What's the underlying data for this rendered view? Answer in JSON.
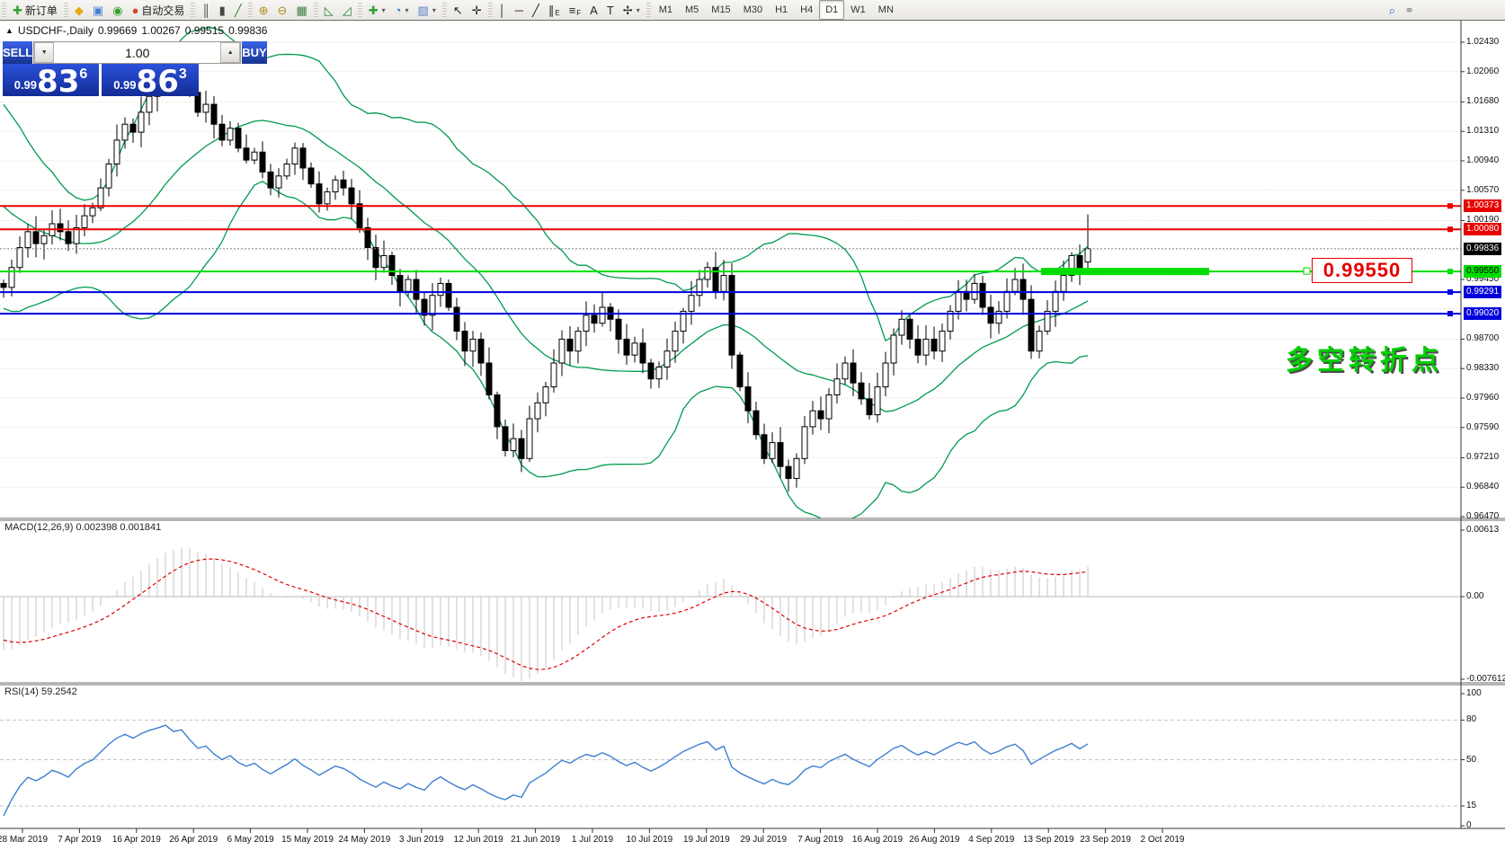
{
  "toolbar": {
    "groups": [
      {
        "items": [
          {
            "name": "new-order-button",
            "glyph": "✚",
            "glyph_color": "#2fa12f",
            "label": "新订单"
          }
        ]
      },
      {
        "items": [
          {
            "name": "charts-button",
            "glyph": "◆",
            "glyph_color": "#e3a812"
          },
          {
            "name": "terminal-button",
            "glyph": "▣",
            "glyph_color": "#4b7fd6"
          },
          {
            "name": "signals-button",
            "glyph": "◉",
            "glyph_color": "#35a035"
          },
          {
            "name": "autotrading-button",
            "glyph": "●",
            "glyph_color": "#cf4a26",
            "label": "自动交易"
          }
        ]
      },
      {
        "items": [
          {
            "name": "bar-chart-button",
            "glyph": "║",
            "glyph_color": "#444444"
          },
          {
            "name": "candlestick-chart-button",
            "glyph": "▮",
            "glyph_color": "#444444"
          },
          {
            "name": "line-chart-button",
            "glyph": "╱",
            "glyph_color": "#2f7f2f"
          }
        ]
      },
      {
        "items": [
          {
            "name": "zoom-in-button",
            "glyph": "⊕",
            "glyph_color": "#b08f1d"
          },
          {
            "name": "zoom-out-button",
            "glyph": "⊖",
            "glyph_color": "#b08f1d"
          },
          {
            "name": "tile-windows-button",
            "glyph": "▦",
            "glyph_color": "#3f7f3f"
          }
        ]
      },
      {
        "items": [
          {
            "name": "indicator-window-button",
            "glyph": "◺",
            "glyph_color": "#2f7f2f"
          },
          {
            "name": "objects-window-button",
            "glyph": "◿",
            "glyph_color": "#2f7f2f"
          }
        ]
      },
      {
        "items": [
          {
            "name": "add-indicator-dropdown",
            "glyph": "✚",
            "glyph_color": "#2fa12f",
            "dropdown": true
          },
          {
            "name": "periods-dropdown",
            "glyph": "◔",
            "glyph_color": "#2f6fc0",
            "dropdown": true
          },
          {
            "name": "templates-dropdown",
            "glyph": "▨",
            "glyph_color": "#5f83c9",
            "dropdown": true
          }
        ]
      },
      {
        "items": [
          {
            "name": "cursor-button",
            "glyph": "↖",
            "glyph_color": "#222222"
          },
          {
            "name": "crosshair-button",
            "glyph": "✛",
            "glyph_color": "#222222"
          }
        ]
      },
      {
        "items": [
          {
            "name": "vertical-line-button",
            "glyph": "│",
            "glyph_color": "#222222"
          },
          {
            "name": "horizontal-line-button",
            "glyph": "─",
            "glyph_color": "#222222"
          },
          {
            "name": "trendline-button",
            "glyph": "╱",
            "glyph_color": "#222222"
          },
          {
            "name": "equidistant-channel-button",
            "glyph": "∥",
            "sub": "E",
            "glyph_color": "#222222"
          },
          {
            "name": "fibonacci-button",
            "glyph": "≡",
            "sub": "F",
            "glyph_color": "#222222"
          },
          {
            "name": "text-button",
            "glyph": "A",
            "glyph_color": "#222222"
          },
          {
            "name": "text-label-button",
            "glyph": "T",
            "glyph_color": "#222222"
          },
          {
            "name": "arrows-dropdown",
            "glyph": "✢",
            "glyph_color": "#222222",
            "dropdown": true
          }
        ]
      }
    ],
    "timeframes": [
      "M1",
      "M5",
      "M15",
      "M30",
      "H1",
      "H4",
      "D1",
      "W1",
      "MN"
    ],
    "active_timeframe": "D1",
    "right_items": [
      {
        "name": "search-button",
        "glyph": "⌕",
        "glyph_color": "#2a6fd0"
      },
      {
        "name": "chat-button",
        "glyph": "⚭",
        "glyph_color": "#8a8f98"
      }
    ],
    "dropdown_glyph": "▾"
  },
  "header": {
    "collapse_glyph": "▲",
    "title": "USDCHF-,Daily",
    "open": "0.99669",
    "high": "1.00267",
    "low": "0.99515",
    "close": "0.99836"
  },
  "trade_panel": {
    "sell_label": "SELL",
    "buy_label": "BUY",
    "volume": "1.00",
    "stepper_down_glyph": "▼",
    "stepper_up_glyph": "▲",
    "sell_price": {
      "small": "0.99",
      "big": "83",
      "sup": "6"
    },
    "buy_price": {
      "small": "0.99",
      "big": "86",
      "sup": "3"
    }
  },
  "objects": {
    "annotation_text": "多空转折点",
    "level_label": "0.99550"
  },
  "macd_pane": {
    "label": "MACD(12,26,9) 0.002398 0.001841",
    "axis": [
      {
        "label": "0.00613",
        "v": 0.00613
      },
      {
        "label": "0.00",
        "v": 0
      },
      {
        "label": "-0.007612",
        "v": -0.007612
      }
    ]
  },
  "rsi_pane": {
    "label": "RSI(14) 59.2542",
    "axis": [
      {
        "label": "100",
        "v": 100
      },
      {
        "label": "80",
        "v": 80
      },
      {
        "label": "50",
        "v": 50
      },
      {
        "label": "15",
        "v": 15
      },
      {
        "label": "0",
        "v": 0
      }
    ],
    "dashed_levels": [
      80,
      50,
      15
    ]
  },
  "price_axis": {
    "ticks": [
      {
        "label": "1.02430",
        "p": 1.0243
      },
      {
        "label": "1.02060",
        "p": 1.0206
      },
      {
        "label": "1.01680",
        "p": 1.0168
      },
      {
        "label": "1.01310",
        "p": 1.0131
      },
      {
        "label": "1.00940",
        "p": 1.0094
      },
      {
        "label": "1.00570",
        "p": 1.0057
      },
      {
        "label": "1.00190",
        "p": 1.0019
      },
      {
        "label": "0.99450",
        "p": 0.9945
      },
      {
        "label": "0.98700",
        "p": 0.987
      },
      {
        "label": "0.98330",
        "p": 0.9833
      },
      {
        "label": "0.97960",
        "p": 0.9796
      },
      {
        "label": "0.97590",
        "p": 0.9759
      },
      {
        "label": "0.97210",
        "p": 0.9721
      },
      {
        "label": "0.96840",
        "p": 0.9684
      },
      {
        "label": "0.96470",
        "p": 0.9647
      }
    ],
    "grid_extra": [
      0.9982,
      0.9908
    ],
    "badges": [
      {
        "label": "1.00373",
        "p": 1.00373,
        "type": "red"
      },
      {
        "label": "1.00080",
        "p": 1.0008,
        "type": "red"
      },
      {
        "label": "0.99836",
        "p": 0.99836,
        "type": "black"
      },
      {
        "label": "0.99550",
        "p": 0.9955,
        "type": "green"
      },
      {
        "label": "0.99291",
        "p": 0.99291,
        "type": "blue"
      },
      {
        "label": "0.99020",
        "p": 0.9902,
        "type": "blue"
      }
    ]
  },
  "time_axis": {
    "dates": [
      "28 Mar 2019",
      "7 Apr 2019",
      "16 Apr 2019",
      "26 Apr 2019",
      "6 May 2019",
      "15 May 2019",
      "24 May 2019",
      "3 Jun 2019",
      "12 Jun 2019",
      "21 Jun 2019",
      "1 Jul 2019",
      "10 Jul 2019",
      "19 Jul 2019",
      "29 Jul 2019",
      "7 Aug 2019",
      "16 Aug 2019",
      "26 Aug 2019",
      "4 Sep 2019",
      "13 Sep 2019",
      "23 Sep 2019",
      "2 Oct 2019"
    ]
  },
  "chart_data": {
    "type": "candlestick",
    "symbol": "USDCHF",
    "period": "Daily",
    "price_axis_range": [
      0.9647,
      1.0243
    ],
    "macd_axis_range": [
      -0.007612,
      0.00613
    ],
    "rsi_axis_range": [
      0,
      100
    ],
    "closes_offscreen": [
      1.015,
      1.014,
      1.0125,
      1.013,
      1.011,
      1.0095,
      1.008,
      1.0085,
      1.0065,
      1.005,
      1.004,
      1.0025,
      1.003,
      1.001,
      0.9995,
      0.998,
      0.9985,
      0.9965,
      0.995,
      0.994
    ],
    "closes": [
      0.9935,
      0.996,
      0.9985,
      1.0005,
      0.999,
      1.0,
      1.0015,
      1.0005,
      0.999,
      1.001,
      1.0025,
      1.0035,
      1.006,
      1.009,
      1.012,
      1.014,
      1.013,
      1.0155,
      1.0175,
      1.019,
      1.021,
      1.0195,
      1.0205,
      1.018,
      1.0155,
      1.0165,
      1.014,
      1.012,
      1.0135,
      1.011,
      1.0095,
      1.0105,
      1.008,
      1.006,
      1.0075,
      1.009,
      1.011,
      1.0085,
      1.0065,
      1.004,
      1.0055,
      1.007,
      1.006,
      1.004,
      1.001,
      0.9985,
      0.996,
      0.9975,
      0.995,
      0.993,
      0.9945,
      0.992,
      0.99,
      0.9925,
      0.994,
      0.991,
      0.988,
      0.9855,
      0.987,
      0.984,
      0.98,
      0.976,
      0.973,
      0.9745,
      0.972,
      0.977,
      0.979,
      0.981,
      0.984,
      0.987,
      0.9855,
      0.988,
      0.99,
      0.989,
      0.991,
      0.9895,
      0.987,
      0.985,
      0.9865,
      0.984,
      0.982,
      0.9835,
      0.9855,
      0.988,
      0.9905,
      0.9925,
      0.9945,
      0.996,
      0.993,
      0.995,
      0.985,
      0.981,
      0.978,
      0.975,
      0.972,
      0.974,
      0.971,
      0.9695,
      0.972,
      0.976,
      0.978,
      0.977,
      0.98,
      0.982,
      0.984,
      0.9815,
      0.9795,
      0.9775,
      0.981,
      0.984,
      0.9875,
      0.9895,
      0.987,
      0.985,
      0.987,
      0.9855,
      0.988,
      0.9905,
      0.993,
      0.992,
      0.994,
      0.991,
      0.989,
      0.9905,
      0.993,
      0.9945,
      0.992,
      0.9855,
      0.988,
      0.9905,
      0.993,
      0.995,
      0.9975,
      0.9952,
      0.99836
    ],
    "last_bar": {
      "open": 0.99669,
      "high": 1.00267,
      "low": 0.99515,
      "close": 0.99836
    },
    "indicators": [
      {
        "name": "Bollinger Bands",
        "period": 20,
        "deviation": 2,
        "color": "#009a4e"
      },
      {
        "name": "MACD",
        "fast": 12,
        "slow": 26,
        "signal": 9,
        "current_macd": 0.002398,
        "current_signal": 0.001841
      },
      {
        "name": "RSI",
        "period": 14,
        "current": 59.2542
      }
    ],
    "hlines": [
      {
        "price": 1.00373,
        "color": "#e80000"
      },
      {
        "price": 1.0008,
        "color": "#e80000"
      },
      {
        "price": 0.9955,
        "color": "#00dd00",
        "thick_segment": [
          1158,
          1345
        ]
      },
      {
        "price": 0.99291,
        "color": "#0000dd"
      },
      {
        "price": 0.9902,
        "color": "#0000dd"
      }
    ],
    "current_price": 0.99836
  },
  "colors": {
    "panel_blue": "#1c44d2",
    "bull": "#ffffff",
    "bear": "#000000",
    "candle_outline": "#000000",
    "bollinger": "#009a4e",
    "macd_hist": "#c6c6c6",
    "macd_signal": "#e00000",
    "rsi_line": "#3e7fd2",
    "grid": "#dcdcdc",
    "separator": "#6e6e6e"
  }
}
